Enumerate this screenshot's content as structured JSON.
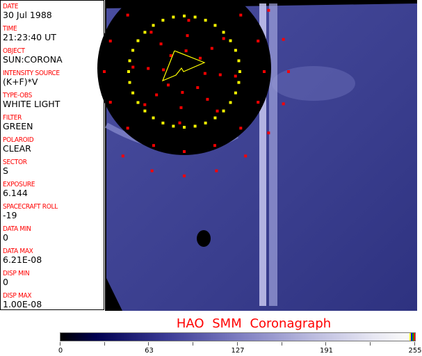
{
  "info_panel": [
    {
      "label": "DATE",
      "value": "30 Jul 1988"
    },
    {
      "label": "TIME",
      "value": "21:23:40 UT"
    },
    {
      "label": "OBJECT",
      "value": "SUN:CORONA"
    },
    {
      "label": "INTENSITY SOURCE",
      "value": "(K+F)*V"
    },
    {
      "label": "TYPE-OBS",
      "value": "WHITE LIGHT"
    },
    {
      "label": "FILTER",
      "value": "GREEN"
    },
    {
      "label": "POLAROID",
      "value": "CLEAR"
    },
    {
      "label": "SECTOR",
      "value": "S"
    },
    {
      "label": "EXPOSURE",
      "value": "6.144"
    },
    {
      "label": "SPACECRAFT ROLL",
      "value": "-19"
    },
    {
      "label": "DATA MIN",
      "value": "0"
    },
    {
      "label": "DATA MAX",
      "value": "6.21E-08"
    },
    {
      "label": "DISP MIN",
      "value": "0"
    },
    {
      "label": "DISP MAX",
      "value": "1.00E-08"
    }
  ],
  "title": "HAO  SMM Coronagraph",
  "colorbar": {
    "ticks": [
      "0",
      "63",
      "127",
      "191",
      "255"
    ],
    "colors": {
      "low": "#000000",
      "mid": "#3a3a95",
      "high": "#f8f8f8"
    }
  },
  "overlay_colors": {
    "marker_red": "#ff0000",
    "marker_yellow": "#ffff00"
  }
}
